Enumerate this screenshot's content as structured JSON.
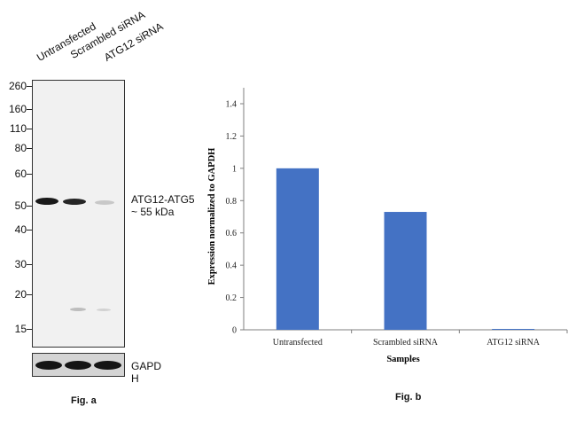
{
  "western_blot": {
    "lanes": [
      "Untransfected",
      "Scrambled siRNA",
      "ATG12 siRNA"
    ],
    "mw_markers": [
      "260",
      "160",
      "110",
      "80",
      "60",
      "50",
      "40",
      "30",
      "20",
      "15"
    ],
    "band_label_line1": "ATG12-ATG5",
    "band_label_line2": "~ 55 kDa",
    "loading_control_line1": "GAPD",
    "loading_control_line2": "H",
    "figure_label": "Fig. a"
  },
  "chart_figure_label": "Fig. b",
  "colors": {
    "bar": "#4472c4",
    "axis": "#7f7f7f",
    "blot_bg": "#f1f1f1"
  },
  "chart_data": {
    "type": "bar",
    "categories": [
      "Untransfected",
      "Scrambled siRNA",
      "ATG12 siRNA"
    ],
    "values": [
      1.0,
      0.73,
      0.005
    ],
    "ylabel": "Expression normalized to GAPDH",
    "xlabel": "Samples",
    "ylim": [
      0,
      1.4
    ],
    "yticks": [
      "0",
      "0.2",
      "0.4",
      "0.6",
      "0.8",
      "1",
      "1.2",
      "1.4"
    ],
    "grid": false,
    "legend": "none"
  }
}
